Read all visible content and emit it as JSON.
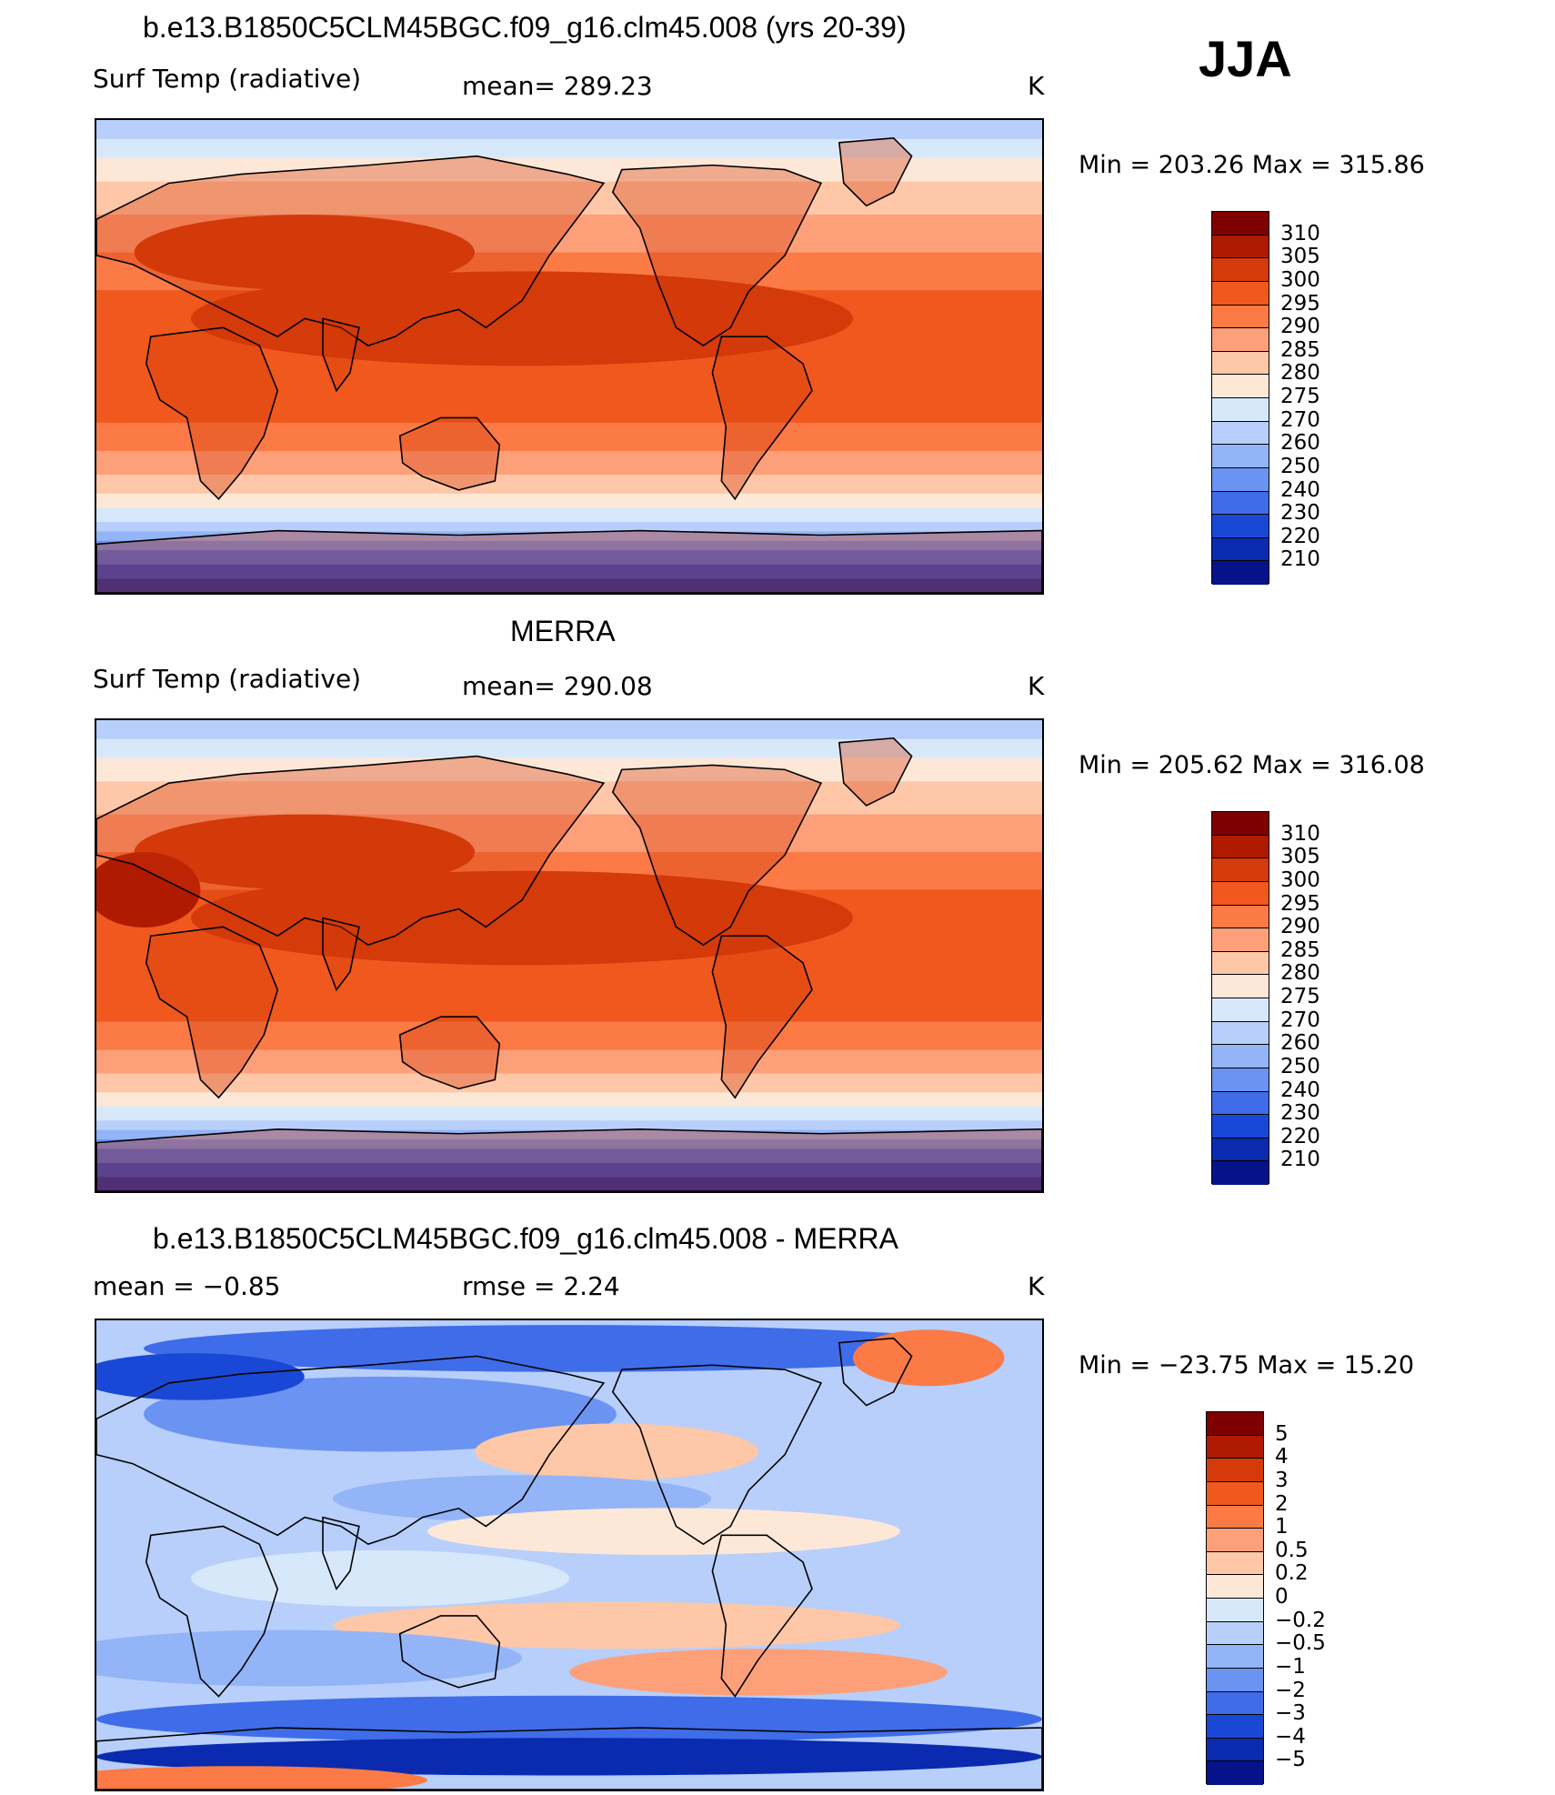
{
  "season": "JJA",
  "panels": [
    {
      "title": "b.e13.B1850C5CLM45BGC.f09_g16.clm45.008 (yrs 20-39)",
      "left_label": "Surf Temp (radiative)",
      "center_label": "mean=  289.23",
      "units": "K",
      "minmax": "Min  =  203.26  Max  =  315.86",
      "colorbar": {
        "labels": [
          "310",
          "305",
          "300",
          "295",
          "290",
          "285",
          "280",
          "275",
          "270",
          "260",
          "250",
          "240",
          "230",
          "220",
          "210"
        ],
        "colors": [
          "#7f0000",
          "#b01a00",
          "#d43a0a",
          "#f0581d",
          "#fb7a45",
          "#fda07a",
          "#fdc7a8",
          "#fde8d8",
          "#d8e8fb",
          "#b7cffa",
          "#93b4f7",
          "#6b93f2",
          "#3f6ce8",
          "#1a48d6",
          "#0a2ab0",
          "#05128a"
        ]
      },
      "map_style": "model"
    },
    {
      "title": "MERRA",
      "left_label": "Surf Temp (radiative)",
      "center_label": "mean=  290.08",
      "units": "K",
      "minmax": "Min  =  205.62  Max  =  316.08",
      "colorbar": {
        "labels": [
          "310",
          "305",
          "300",
          "295",
          "290",
          "285",
          "280",
          "275",
          "270",
          "260",
          "250",
          "240",
          "230",
          "220",
          "210"
        ],
        "colors": [
          "#7f0000",
          "#b01a00",
          "#d43a0a",
          "#f0581d",
          "#fb7a45",
          "#fda07a",
          "#fdc7a8",
          "#fde8d8",
          "#d8e8fb",
          "#b7cffa",
          "#93b4f7",
          "#6b93f2",
          "#3f6ce8",
          "#1a48d6",
          "#0a2ab0",
          "#05128a"
        ]
      },
      "map_style": "obs"
    },
    {
      "title": "b.e13.B1850C5CLM45BGC.f09_g16.clm45.008 - MERRA",
      "left_label": "mean  =    −0.85",
      "center_label": "rmse  =     2.24",
      "units": "K",
      "minmax": "Min  =  −23.75  Max  =    15.20",
      "colorbar": {
        "labels": [
          "5",
          "4",
          "3",
          "2",
          "1",
          "0.5",
          "0.2",
          "0",
          "−0.2",
          "−0.5",
          "−1",
          "−2",
          "−3",
          "−4",
          "−5"
        ],
        "colors": [
          "#7f0000",
          "#b01a00",
          "#d43a0a",
          "#f0581d",
          "#fb7a45",
          "#fda07a",
          "#fdc7a8",
          "#fde8d8",
          "#d8e8fb",
          "#b7cffa",
          "#93b4f7",
          "#6b93f2",
          "#3f6ce8",
          "#1a48d6",
          "#0a2ab0",
          "#05128a"
        ]
      },
      "map_style": "diff"
    }
  ]
}
